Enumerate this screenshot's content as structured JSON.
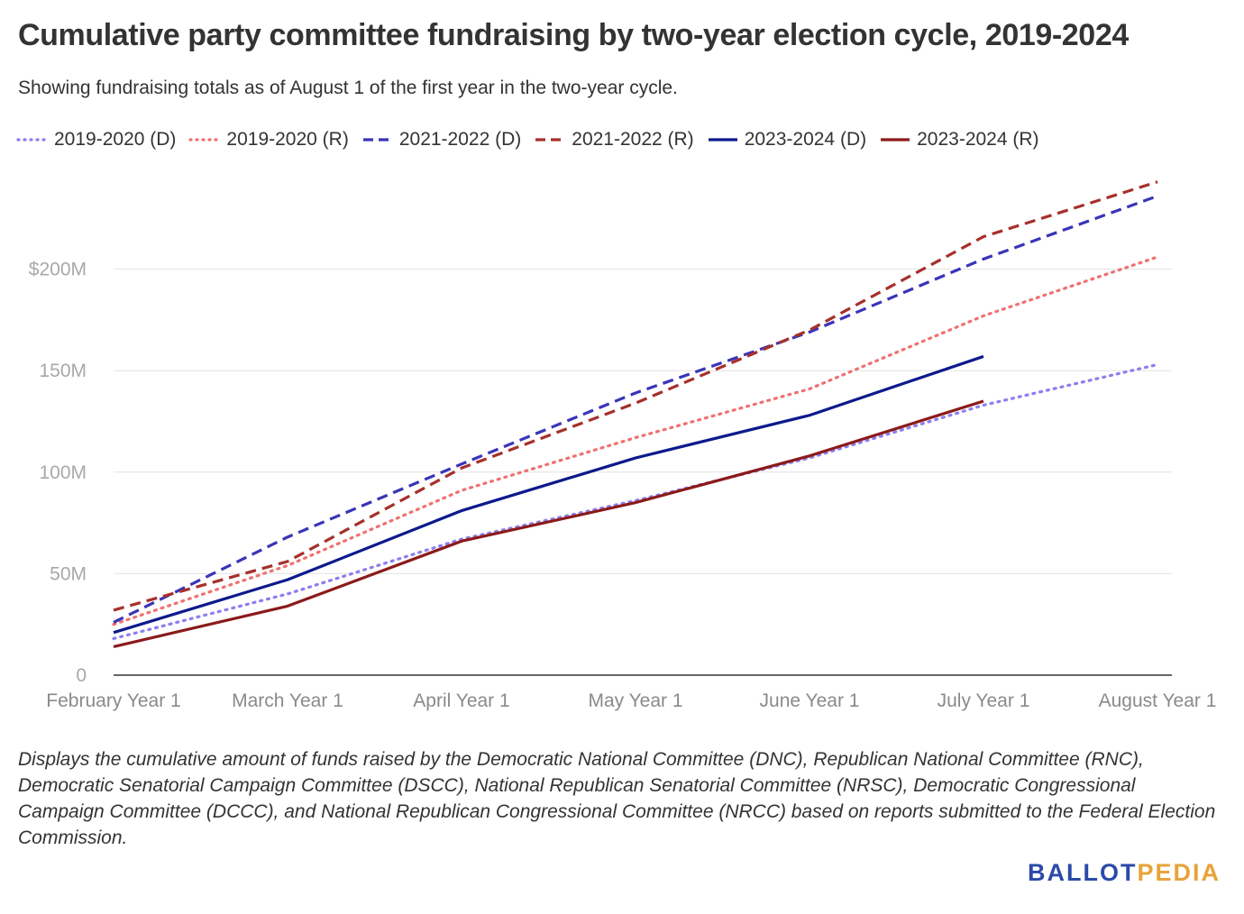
{
  "title": "Cumulative party committee fundraising by two-year election cycle, 2019-2024",
  "subtitle": "Showing fundraising totals as of August 1 of the first year in the two-year cycle.",
  "note": "Displays the cumulative amount of funds raised by the Democratic National Committee (DNC), Republican National Committee (RNC), Democratic Senatorial Campaign Committee (DSCC), National Republican Senatorial Committee (NRSC), Democratic Congressional Campaign Committee (DCCC), and National Republican Congressional Committee (NRCC) based on reports submitted to the Federal Election Commission.",
  "logo": {
    "part1": "BALLOT",
    "part2": "PEDIA"
  },
  "chart_data": {
    "type": "line",
    "title": "Cumulative party committee fundraising by two-year election cycle, 2019-2024",
    "subtitle": "Showing fundraising totals as of August 1 of the first year in the two-year cycle.",
    "categories": [
      "February Year 1",
      "March Year 1",
      "April Year 1",
      "May Year 1",
      "June Year 1",
      "July Year 1",
      "August Year 1"
    ],
    "ylim": [
      0,
      250
    ],
    "y_unit": "millions of dollars",
    "y_ticks": [
      {
        "value": 0,
        "label": "0"
      },
      {
        "value": 50,
        "label": "50M"
      },
      {
        "value": 100,
        "label": "100M"
      },
      {
        "value": 150,
        "label": "150M"
      },
      {
        "value": 200,
        "label": "$200M"
      }
    ],
    "grid": true,
    "legend_position": "top",
    "series": [
      {
        "name": "2019-2020 (D)",
        "style": "dotted",
        "color": "#8c7ef0",
        "values": [
          18,
          40,
          67,
          86,
          107,
          133,
          153
        ]
      },
      {
        "name": "2019-2020 (R)",
        "style": "dotted",
        "color": "#f07070",
        "values": [
          25,
          54,
          91,
          117,
          141,
          177,
          206
        ]
      },
      {
        "name": "2021-2022 (D)",
        "style": "dashed",
        "color": "#3a34b8",
        "values": [
          26,
          68,
          104,
          139,
          169,
          205,
          236
        ]
      },
      {
        "name": "2021-2022 (R)",
        "style": "dashed",
        "color": "#a6302b",
        "values": [
          32,
          56,
          102,
          134,
          170,
          216,
          243
        ]
      },
      {
        "name": "2023-2024 (D)",
        "style": "solid",
        "color": "#0d1a8c",
        "values": [
          21,
          47,
          81,
          107,
          128,
          157,
          null
        ]
      },
      {
        "name": "2023-2024 (R)",
        "style": "solid",
        "color": "#8b1a1a",
        "values": [
          14,
          34,
          66,
          85,
          108,
          135,
          null
        ]
      }
    ]
  }
}
